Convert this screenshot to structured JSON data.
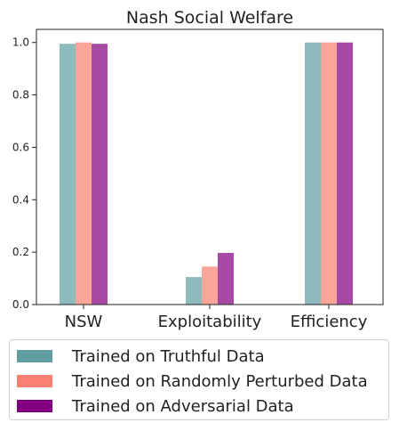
{
  "chart_data": {
    "type": "bar",
    "title": "Nash Social Welfare",
    "categories": [
      "NSW",
      "Exploitability",
      "Efficiency"
    ],
    "series": [
      {
        "name": "Trained on Truthful Data",
        "values": [
          0.995,
          0.105,
          1.0
        ],
        "color": "#8ebbbd",
        "legend_color": "#5f9ea0"
      },
      {
        "name": "Trained on Randomly Perturbed Data",
        "values": [
          1.0,
          0.145,
          1.0
        ],
        "color": "#faa59a",
        "legend_color": "#fa8072"
      },
      {
        "name": "Trained on Adversarial Data",
        "values": [
          0.995,
          0.197,
          1.0
        ],
        "color": "#a64aa6",
        "legend_color": "#800080"
      }
    ],
    "ylim": [
      0,
      1.05
    ],
    "yticks": [
      "0.0",
      "0.2",
      "0.4",
      "0.6",
      "0.8",
      "1.0"
    ],
    "ytick_values": [
      0,
      0.2,
      0.4,
      0.6,
      0.8,
      1.0
    ],
    "grid": false,
    "legend_position": "below"
  }
}
